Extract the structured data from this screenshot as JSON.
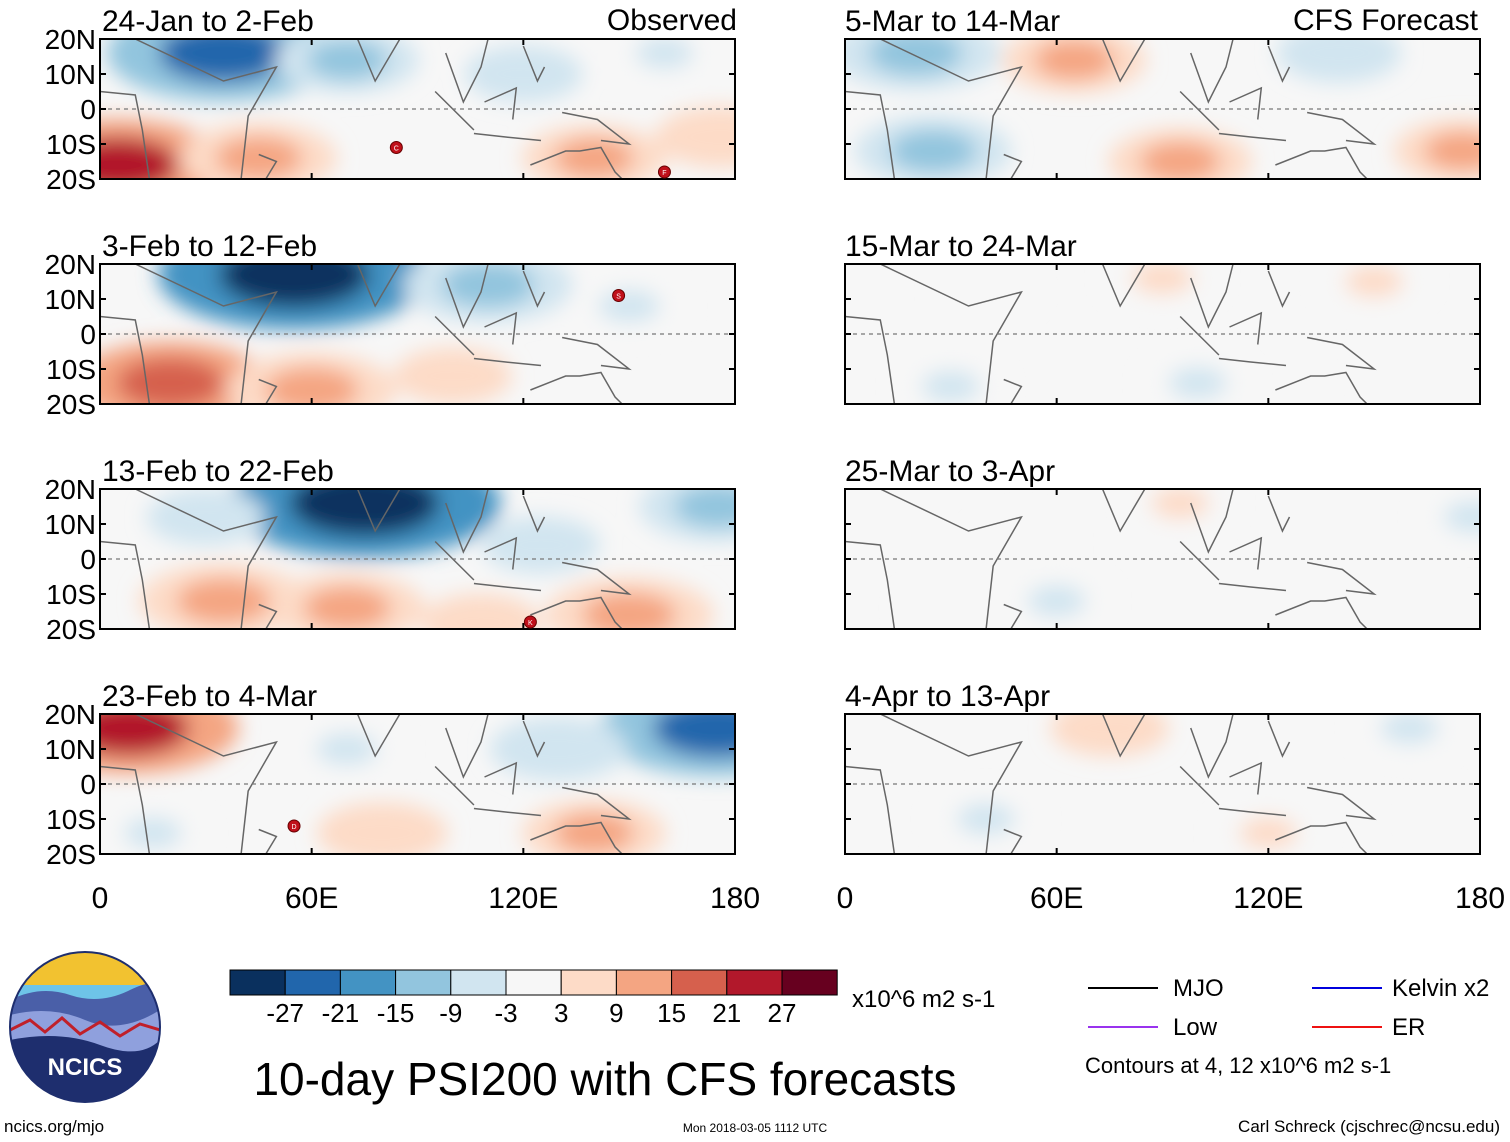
{
  "chart_data": {
    "type": "heatmap",
    "title": "10-day PSI200 with CFS forecasts",
    "x_ticks": [
      "0",
      "60E",
      "120E",
      "180"
    ],
    "x_range": [
      0,
      180
    ],
    "y_ticks": [
      "20N",
      "10N",
      "0",
      "10S",
      "20S"
    ],
    "y_range": [
      -20,
      20
    ],
    "units": "x10^6 m2 s-1",
    "colorbar": {
      "labels": [
        "-27",
        "-21",
        "-15",
        "-9",
        "-3",
        "3",
        "9",
        "15",
        "21",
        "27"
      ],
      "colors": [
        "#0a305e",
        "#2166ac",
        "#4393c3",
        "#92c5de",
        "#d1e5f0",
        "#f7f7f7",
        "#fddbc7",
        "#f4a582",
        "#d6604d",
        "#b2182b",
        "#67001f"
      ]
    },
    "left_column_label": "Observed",
    "right_column_label": "CFS Forecast",
    "panels": [
      {
        "period": "24-Jan to 2-Feb",
        "column": "observed",
        "storms": [
          {
            "letter": "C",
            "lon": 84,
            "lat": -11
          },
          {
            "letter": "F",
            "lon": 160,
            "lat": -18
          }
        ],
        "anomalies": [
          {
            "lon": 35,
            "lat": 16,
            "value": -24
          },
          {
            "lon": 70,
            "lat": 14,
            "value": -10
          },
          {
            "lon": 120,
            "lat": 10,
            "value": -6
          },
          {
            "lon": 160,
            "lat": 16,
            "value": -4
          },
          {
            "lon": 5,
            "lat": -16,
            "value": 22
          },
          {
            "lon": 45,
            "lat": -14,
            "value": 12
          },
          {
            "lon": 140,
            "lat": -14,
            "value": 10
          },
          {
            "lon": 176,
            "lat": -8,
            "value": 8
          }
        ]
      },
      {
        "period": "3-Feb to 12-Feb",
        "column": "observed",
        "storms": [
          {
            "letter": "S",
            "lon": 147,
            "lat": 11
          }
        ],
        "anomalies": [
          {
            "lon": 55,
            "lat": 17,
            "value": -30
          },
          {
            "lon": 110,
            "lat": 14,
            "value": -14
          },
          {
            "lon": 150,
            "lat": 8,
            "value": -5
          },
          {
            "lon": 20,
            "lat": -14,
            "value": 18
          },
          {
            "lon": 60,
            "lat": -16,
            "value": 14
          },
          {
            "lon": 100,
            "lat": -12,
            "value": 6
          }
        ]
      },
      {
        "period": "13-Feb to 22-Feb",
        "column": "observed",
        "storms": [
          {
            "letter": "K",
            "lon": 122,
            "lat": -18
          }
        ],
        "anomalies": [
          {
            "lon": 75,
            "lat": 16,
            "value": -30
          },
          {
            "lon": 30,
            "lat": 12,
            "value": -6
          },
          {
            "lon": 125,
            "lat": 4,
            "value": -6
          },
          {
            "lon": 175,
            "lat": 15,
            "value": -12
          },
          {
            "lon": 35,
            "lat": -12,
            "value": 14
          },
          {
            "lon": 70,
            "lat": -14,
            "value": 12
          },
          {
            "lon": 150,
            "lat": -16,
            "value": 14
          },
          {
            "lon": 108,
            "lat": -18,
            "value": 6
          }
        ]
      },
      {
        "period": "23-Feb to 4-Mar",
        "column": "observed",
        "storms": [
          {
            "letter": "D",
            "lon": 55,
            "lat": -12
          }
        ],
        "anomalies": [
          {
            "lon": 8,
            "lat": 16,
            "value": 22
          },
          {
            "lon": 175,
            "lat": 16,
            "value": -24
          },
          {
            "lon": 130,
            "lat": 10,
            "value": -9
          },
          {
            "lon": 70,
            "lat": 10,
            "value": -5
          },
          {
            "lon": 80,
            "lat": -14,
            "value": 8
          },
          {
            "lon": 140,
            "lat": -14,
            "value": 10
          },
          {
            "lon": 15,
            "lat": -14,
            "value": -4
          }
        ]
      },
      {
        "period": "5-Mar to 14-Mar",
        "column": "forecast",
        "storms": [],
        "anomalies": [
          {
            "lon": 20,
            "lat": 16,
            "value": -14
          },
          {
            "lon": 65,
            "lat": 14,
            "value": 10
          },
          {
            "lon": 140,
            "lat": 16,
            "value": -7
          },
          {
            "lon": 25,
            "lat": -12,
            "value": -12
          },
          {
            "lon": 95,
            "lat": -15,
            "value": 10
          },
          {
            "lon": 175,
            "lat": -12,
            "value": 9
          }
        ]
      },
      {
        "period": "15-Mar to 24-Mar",
        "column": "forecast",
        "storms": [],
        "anomalies": [
          {
            "lon": 90,
            "lat": 16,
            "value": 5
          },
          {
            "lon": 150,
            "lat": 15,
            "value": 4
          },
          {
            "lon": 40,
            "lat": 12,
            "value": -3
          },
          {
            "lon": 30,
            "lat": -15,
            "value": -4
          },
          {
            "lon": 100,
            "lat": -14,
            "value": -4
          },
          {
            "lon": 160,
            "lat": -10,
            "value": -3
          }
        ]
      },
      {
        "period": "25-Mar to 3-Apr",
        "column": "forecast",
        "storms": [],
        "anomalies": [
          {
            "lon": 95,
            "lat": 16,
            "value": 4
          },
          {
            "lon": 50,
            "lat": 5,
            "value": -3
          },
          {
            "lon": 60,
            "lat": -12,
            "value": -4
          },
          {
            "lon": 30,
            "lat": -14,
            "value": -3
          },
          {
            "lon": 178,
            "lat": 12,
            "value": -4
          }
        ]
      },
      {
        "period": "4-Apr to 13-Apr",
        "column": "forecast",
        "storms": [],
        "anomalies": [
          {
            "lon": 75,
            "lat": 16,
            "value": 6
          },
          {
            "lon": 160,
            "lat": 16,
            "value": -4
          },
          {
            "lon": 40,
            "lat": -10,
            "value": -4
          },
          {
            "lon": 120,
            "lat": -14,
            "value": 4
          },
          {
            "lon": 175,
            "lat": -10,
            "value": -3
          }
        ]
      }
    ]
  },
  "legend": {
    "mjo": "MJO",
    "kelvin": "Kelvin x2",
    "low": "Low",
    "er": "ER",
    "contours_note": "Contours at 4, 12 x10^6 m2 s-1",
    "colors": {
      "mjo": "#000000",
      "kelvin": "#0000dd",
      "low": "#9933ee",
      "er": "#ee1111"
    }
  },
  "logo": {
    "text": "NCICS"
  },
  "footer": {
    "left": "ncics.org/mjo",
    "center": "Mon 2018-03-05 1112 UTC",
    "right": "Carl Schreck (cjschrec@ncsu.edu)"
  }
}
